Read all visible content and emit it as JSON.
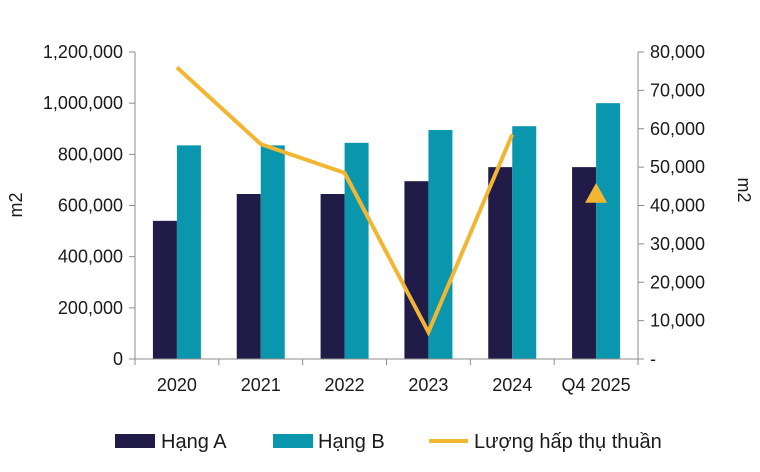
{
  "chart_data": {
    "type": "bar",
    "categories": [
      "2020",
      "2021",
      "2022",
      "2023",
      "2024",
      "Q4 2025"
    ],
    "series": [
      {
        "name": "Hạng A",
        "type": "bar",
        "axis": "left",
        "color": "#211c47",
        "values": [
          540000,
          645000,
          645000,
          695000,
          750000,
          750000
        ]
      },
      {
        "name": "Hạng B",
        "type": "bar",
        "axis": "left",
        "color": "#0a97ae",
        "values": [
          835000,
          835000,
          845000,
          895000,
          910000,
          1000000
        ]
      },
      {
        "name": "Lượng hấp thụ thuần",
        "type": "line",
        "axis": "right",
        "color": "#f2b632",
        "values": [
          76000,
          56000,
          48500,
          7000,
          58500,
          null
        ],
        "projection": {
          "category": "Q4 2025",
          "value": 43000,
          "marker": "triangle"
        }
      }
    ],
    "y_left": {
      "label": "m2",
      "range": [
        0,
        1200000
      ],
      "ticks": [
        "1,200,000",
        "1,000,000",
        "800,000",
        "600,000",
        "400,000",
        "200,000",
        "0"
      ]
    },
    "y_right": {
      "label": "m2",
      "range": [
        0,
        80000
      ],
      "ticks": [
        "80,000",
        "70,000",
        "60,000",
        "50,000",
        "40,000",
        "30,000",
        "20,000",
        "10,000",
        "-"
      ]
    },
    "grid": false,
    "legend_position": "bottom"
  }
}
